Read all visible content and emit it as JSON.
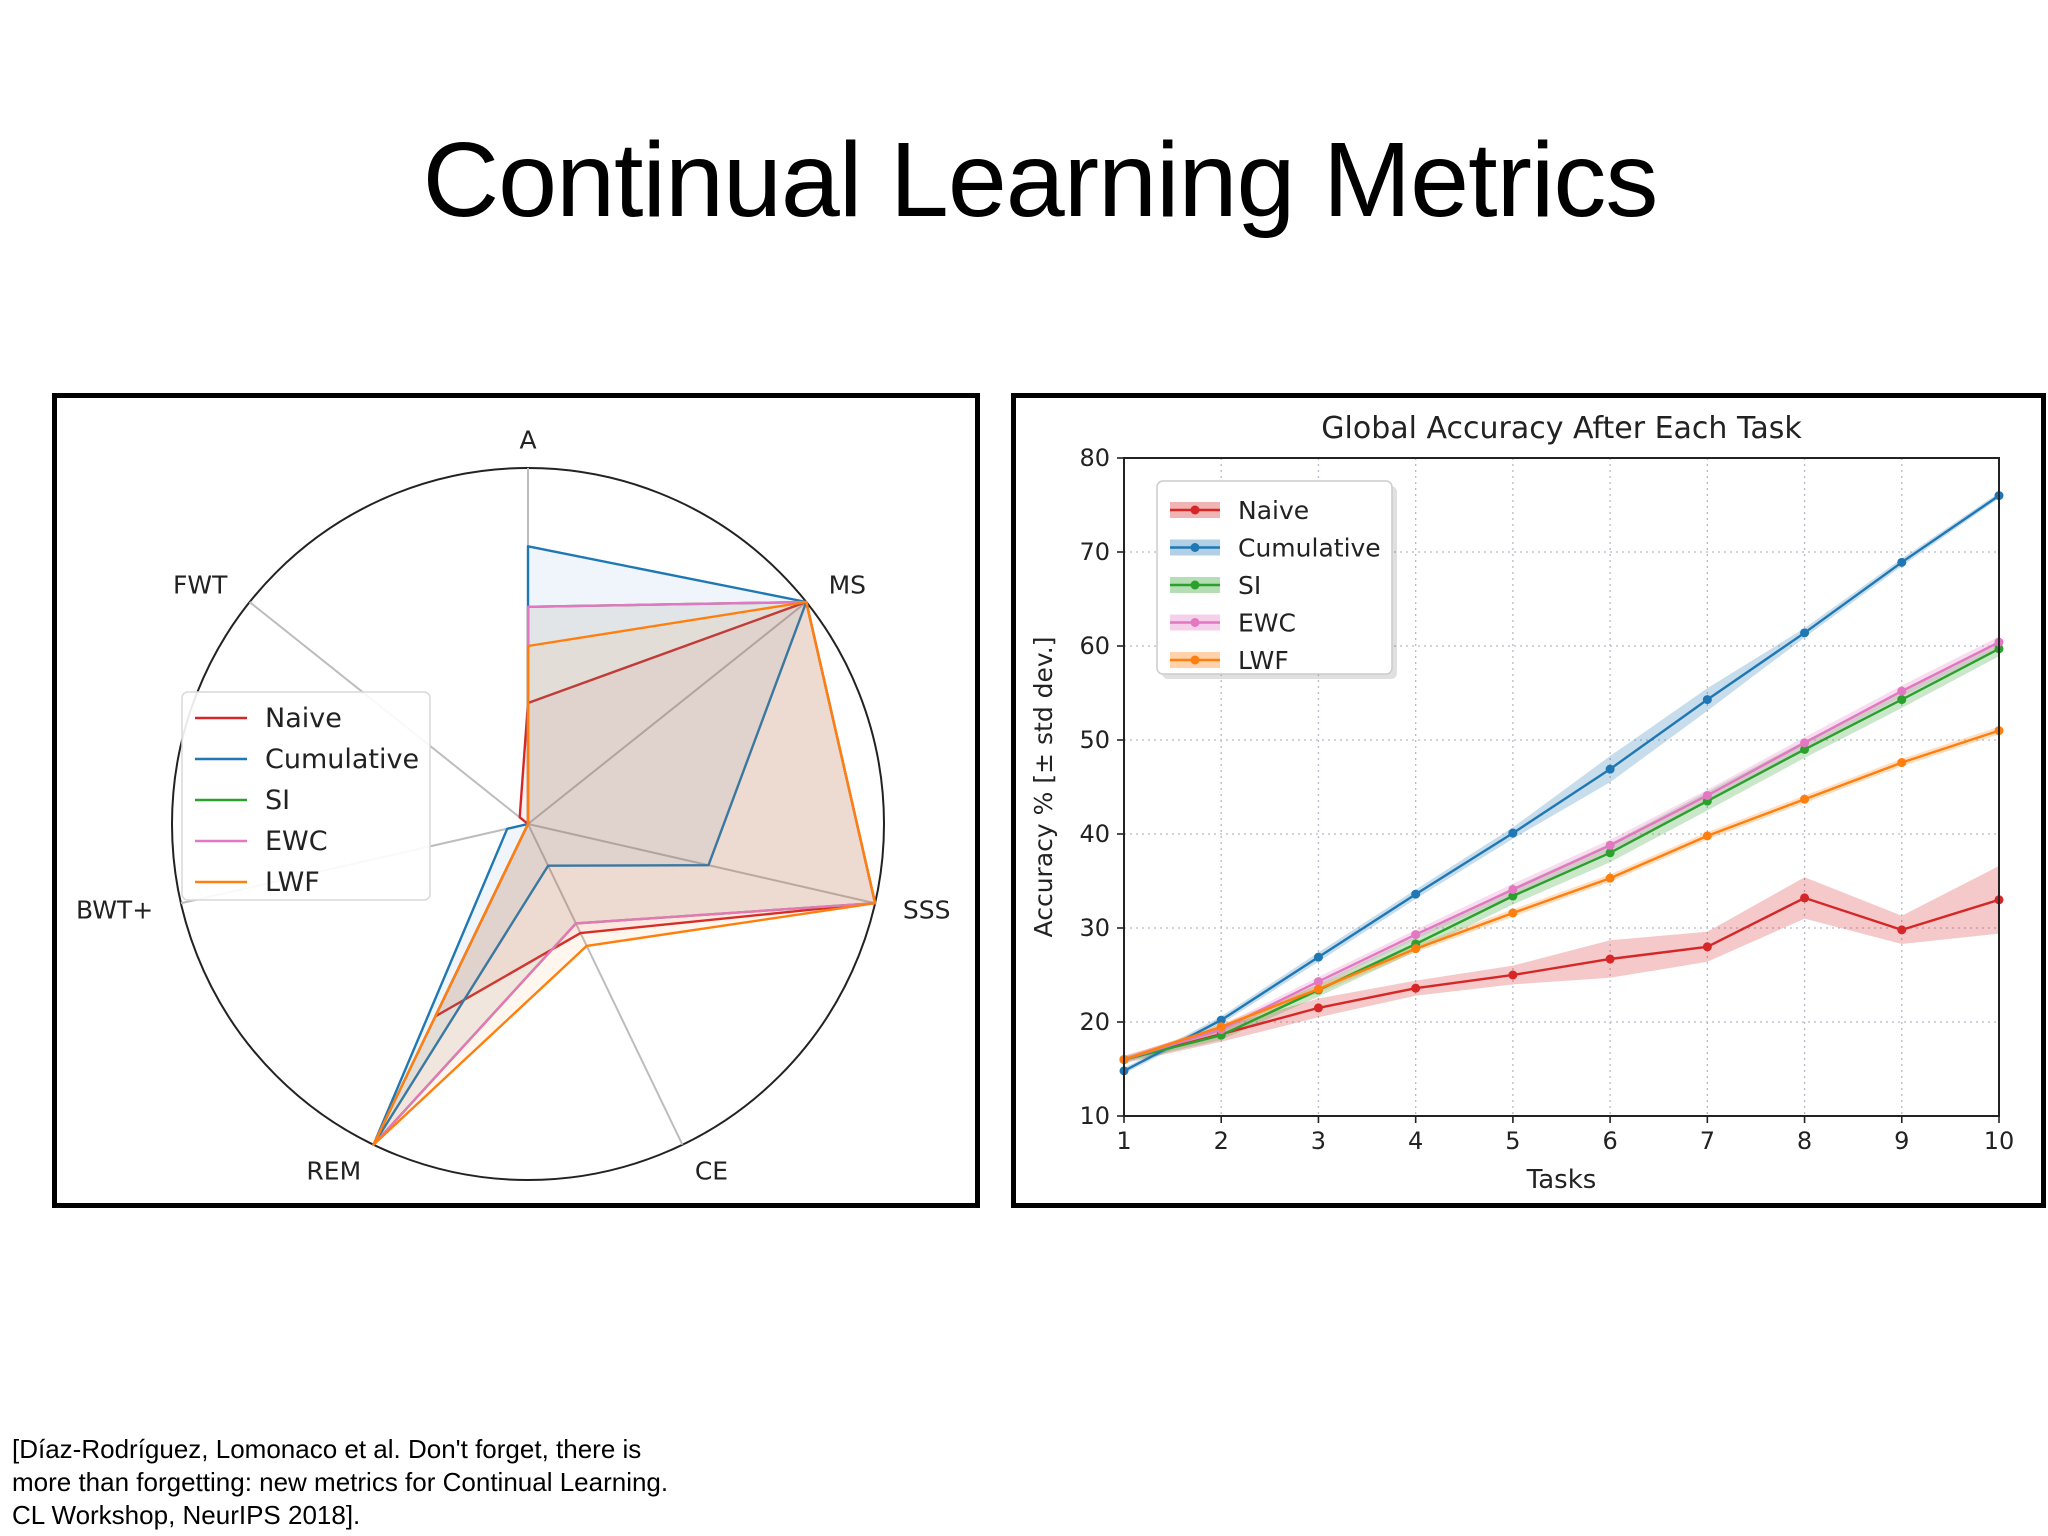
{
  "slide": {
    "title": "Continual Learning Metrics",
    "citation": [
      "[Díaz-Rodríguez, Lomonaco et al. Don't forget, there is",
      "more than forgetting: new metrics for Continual Learning.",
      "CL Workshop, NeurIPS 2018]."
    ]
  },
  "colors": {
    "Naive": "#d62728",
    "Cumulative": "#1f77b4",
    "SI": "#2ca02c",
    "EWC": "#e377c2",
    "LWF": "#ff7f0e"
  },
  "chart_data": [
    {
      "type": "radar",
      "title": "",
      "axes": [
        "A",
        "MS",
        "SSS",
        "CE",
        "REM",
        "BWT+",
        "FWT"
      ],
      "rlim": [
        0,
        1
      ],
      "legend_position": "left",
      "series": [
        {
          "name": "Naive",
          "values": [
            0.34,
            1.0,
            1.0,
            0.34,
            0.6,
            0.0,
            0.03
          ]
        },
        {
          "name": "Cumulative",
          "values": [
            0.78,
            1.0,
            0.52,
            0.13,
            1.0,
            0.06,
            0.0
          ]
        },
        {
          "name": "SI",
          "values": [
            0.61,
            1.0,
            1.0,
            0.31,
            1.0,
            0.0,
            0.0
          ]
        },
        {
          "name": "EWC",
          "values": [
            0.61,
            1.0,
            1.0,
            0.31,
            1.0,
            0.0,
            0.0
          ]
        },
        {
          "name": "LWF",
          "values": [
            0.5,
            1.0,
            1.0,
            0.38,
            1.0,
            0.0,
            0.0
          ]
        }
      ]
    },
    {
      "type": "line",
      "title": "Global Accuracy After Each Task",
      "xlabel": "Tasks",
      "ylabel": "Accuracy % [± std dev.]",
      "x": [
        1,
        2,
        3,
        4,
        5,
        6,
        7,
        8,
        9,
        10
      ],
      "xlim": [
        1,
        10
      ],
      "ylim": [
        10,
        80
      ],
      "yticks": [
        10,
        20,
        30,
        40,
        50,
        60,
        70,
        80
      ],
      "grid": true,
      "legend_position": "upper-left",
      "series": [
        {
          "name": "Naive",
          "values": [
            16.0,
            18.7,
            21.5,
            23.6,
            25.0,
            26.7,
            28.0,
            33.2,
            29.8,
            33.0
          ],
          "std": [
            0.4,
            0.8,
            1.0,
            0.8,
            1.0,
            2.0,
            1.6,
            2.2,
            1.5,
            3.6
          ]
        },
        {
          "name": "Cumulative",
          "values": [
            14.8,
            20.2,
            26.9,
            33.6,
            40.1,
            46.9,
            54.3,
            61.4,
            68.9,
            76.0
          ],
          "std": [
            0.3,
            0.4,
            0.5,
            0.5,
            0.6,
            1.4,
            1.2,
            0.5,
            0.4,
            0.3
          ]
        },
        {
          "name": "SI",
          "values": [
            16.0,
            18.6,
            23.4,
            28.3,
            33.4,
            38.0,
            43.5,
            49.0,
            54.3,
            59.7
          ],
          "std": [
            0.3,
            0.5,
            0.7,
            0.8,
            0.9,
            1.0,
            1.0,
            0.9,
            0.9,
            0.8
          ]
        },
        {
          "name": "EWC",
          "values": [
            16.0,
            19.2,
            24.3,
            29.3,
            34.1,
            38.8,
            44.1,
            49.7,
            55.2,
            60.4
          ],
          "std": [
            0.3,
            0.4,
            0.5,
            0.5,
            0.6,
            0.6,
            0.6,
            0.6,
            0.6,
            0.6
          ]
        },
        {
          "name": "LWF",
          "values": [
            16.0,
            19.5,
            23.5,
            27.8,
            31.6,
            35.3,
            39.8,
            43.7,
            47.6,
            51.0
          ],
          "std": [
            0.2,
            0.3,
            0.4,
            0.4,
            0.4,
            0.4,
            0.4,
            0.4,
            0.4,
            0.4
          ]
        }
      ]
    }
  ]
}
